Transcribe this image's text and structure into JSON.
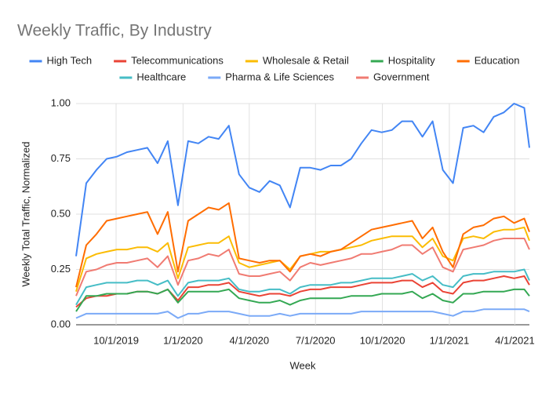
{
  "chart_data": {
    "type": "line",
    "title": "Weekly Traffic, By Industry",
    "x_label": "Week",
    "y_label": "Weekly Total Traffic, Normalized",
    "x": [
      "8/7/2019",
      "8/21/2019",
      "9/4/2019",
      "9/18/2019",
      "10/2/2019",
      "10/16/2019",
      "10/30/2019",
      "11/13/2019",
      "11/27/2019",
      "12/11/2019",
      "12/25/2019",
      "1/8/2020",
      "1/22/2020",
      "2/5/2020",
      "2/19/2020",
      "3/4/2020",
      "3/18/2020",
      "4/1/2020",
      "4/15/2020",
      "4/29/2020",
      "5/13/2020",
      "5/27/2020",
      "6/10/2020",
      "6/24/2020",
      "7/8/2020",
      "7/22/2020",
      "8/5/2020",
      "8/19/2020",
      "9/2/2020",
      "9/16/2020",
      "9/30/2020",
      "10/14/2020",
      "10/28/2020",
      "11/11/2020",
      "11/25/2020",
      "12/9/2020",
      "12/23/2020",
      "1/6/2021",
      "1/20/2021",
      "2/3/2021",
      "2/17/2021",
      "3/3/2021",
      "3/17/2021",
      "3/31/2021",
      "4/14/2021",
      "4/21/2021"
    ],
    "xlim": [
      "8/7/2019",
      "4/21/2021"
    ],
    "xticks": [
      "10/1/2019",
      "1/1/2020",
      "4/1/2020",
      "7/1/2020",
      "10/1/2020",
      "1/1/2021",
      "4/1/2021"
    ],
    "ylim": [
      0,
      1
    ],
    "yticks": [
      {
        "value": 0,
        "label": "0.00"
      },
      {
        "value": 0.25,
        "label": "0.25"
      },
      {
        "value": 0.5,
        "label": "0.50"
      },
      {
        "value": 0.75,
        "label": "0.75"
      },
      {
        "value": 1,
        "label": "1.00"
      }
    ],
    "grid": true,
    "legend": "top",
    "series": [
      {
        "name": "High Tech",
        "color": "#4285f4",
        "values": [
          0.31,
          0.64,
          0.7,
          0.75,
          0.76,
          0.78,
          0.79,
          0.8,
          0.73,
          0.83,
          0.54,
          0.83,
          0.82,
          0.85,
          0.84,
          0.9,
          0.68,
          0.62,
          0.6,
          0.65,
          0.63,
          0.53,
          0.71,
          0.71,
          0.7,
          0.72,
          0.72,
          0.75,
          0.82,
          0.88,
          0.87,
          0.88,
          0.92,
          0.92,
          0.85,
          0.92,
          0.7,
          0.64,
          0.89,
          0.9,
          0.87,
          0.94,
          0.96,
          1.0,
          0.98,
          0.8
        ]
      },
      {
        "name": "Telecommunications",
        "color": "#ea4335",
        "values": [
          0.08,
          0.12,
          0.13,
          0.13,
          0.14,
          0.14,
          0.15,
          0.15,
          0.14,
          0.16,
          0.11,
          0.17,
          0.17,
          0.18,
          0.18,
          0.19,
          0.15,
          0.14,
          0.13,
          0.14,
          0.14,
          0.13,
          0.15,
          0.16,
          0.16,
          0.17,
          0.17,
          0.17,
          0.18,
          0.19,
          0.19,
          0.19,
          0.2,
          0.2,
          0.17,
          0.19,
          0.15,
          0.14,
          0.19,
          0.2,
          0.2,
          0.21,
          0.22,
          0.21,
          0.22,
          0.18
        ]
      },
      {
        "name": "Wholesale & Retail",
        "color": "#fbbc04",
        "values": [
          0.15,
          0.3,
          0.32,
          0.33,
          0.34,
          0.34,
          0.35,
          0.35,
          0.33,
          0.37,
          0.21,
          0.35,
          0.36,
          0.37,
          0.37,
          0.4,
          0.28,
          0.26,
          0.27,
          0.28,
          0.29,
          0.25,
          0.31,
          0.32,
          0.33,
          0.33,
          0.34,
          0.35,
          0.36,
          0.38,
          0.39,
          0.4,
          0.4,
          0.4,
          0.35,
          0.39,
          0.31,
          0.29,
          0.39,
          0.4,
          0.39,
          0.42,
          0.43,
          0.43,
          0.44,
          0.38
        ]
      },
      {
        "name": "Hospitality",
        "color": "#34a853",
        "values": [
          0.06,
          0.13,
          0.13,
          0.14,
          0.14,
          0.14,
          0.15,
          0.15,
          0.14,
          0.16,
          0.1,
          0.15,
          0.15,
          0.15,
          0.15,
          0.16,
          0.12,
          0.11,
          0.1,
          0.1,
          0.11,
          0.09,
          0.11,
          0.12,
          0.12,
          0.12,
          0.12,
          0.13,
          0.13,
          0.13,
          0.14,
          0.14,
          0.14,
          0.15,
          0.12,
          0.14,
          0.11,
          0.1,
          0.14,
          0.14,
          0.15,
          0.15,
          0.15,
          0.16,
          0.16,
          0.13
        ]
      },
      {
        "name": "Education",
        "color": "#ff6d01",
        "values": [
          0.17,
          0.36,
          0.41,
          0.47,
          0.48,
          0.49,
          0.5,
          0.51,
          0.41,
          0.51,
          0.24,
          0.47,
          0.5,
          0.53,
          0.52,
          0.55,
          0.3,
          0.29,
          0.28,
          0.29,
          0.29,
          0.24,
          0.31,
          0.32,
          0.31,
          0.33,
          0.34,
          0.37,
          0.4,
          0.43,
          0.44,
          0.45,
          0.46,
          0.47,
          0.39,
          0.44,
          0.33,
          0.26,
          0.41,
          0.44,
          0.45,
          0.48,
          0.49,
          0.46,
          0.48,
          0.42
        ]
      },
      {
        "name": "Healthcare",
        "color": "#46bdc6",
        "values": [
          0.09,
          0.17,
          0.18,
          0.19,
          0.19,
          0.19,
          0.2,
          0.2,
          0.18,
          0.2,
          0.13,
          0.19,
          0.2,
          0.2,
          0.2,
          0.21,
          0.16,
          0.15,
          0.15,
          0.16,
          0.16,
          0.14,
          0.17,
          0.18,
          0.18,
          0.18,
          0.19,
          0.19,
          0.2,
          0.21,
          0.21,
          0.21,
          0.22,
          0.23,
          0.2,
          0.22,
          0.18,
          0.17,
          0.22,
          0.23,
          0.23,
          0.24,
          0.24,
          0.24,
          0.25,
          0.2
        ]
      },
      {
        "name": "Pharma & Life Sciences",
        "color": "#7baaf7",
        "values": [
          0.03,
          0.05,
          0.05,
          0.05,
          0.05,
          0.05,
          0.05,
          0.05,
          0.05,
          0.06,
          0.03,
          0.05,
          0.05,
          0.06,
          0.06,
          0.06,
          0.05,
          0.04,
          0.04,
          0.04,
          0.05,
          0.04,
          0.05,
          0.05,
          0.05,
          0.05,
          0.05,
          0.05,
          0.06,
          0.06,
          0.06,
          0.06,
          0.06,
          0.06,
          0.06,
          0.06,
          0.05,
          0.04,
          0.06,
          0.06,
          0.07,
          0.07,
          0.07,
          0.07,
          0.07,
          0.06
        ]
      },
      {
        "name": "Government",
        "color": "#f07b72",
        "values": [
          0.13,
          0.24,
          0.25,
          0.27,
          0.28,
          0.28,
          0.29,
          0.3,
          0.26,
          0.31,
          0.18,
          0.29,
          0.3,
          0.32,
          0.31,
          0.34,
          0.23,
          0.22,
          0.22,
          0.23,
          0.24,
          0.2,
          0.26,
          0.28,
          0.27,
          0.28,
          0.29,
          0.3,
          0.32,
          0.32,
          0.33,
          0.34,
          0.36,
          0.36,
          0.32,
          0.35,
          0.26,
          0.24,
          0.34,
          0.35,
          0.36,
          0.38,
          0.39,
          0.39,
          0.39,
          0.34
        ]
      }
    ]
  }
}
